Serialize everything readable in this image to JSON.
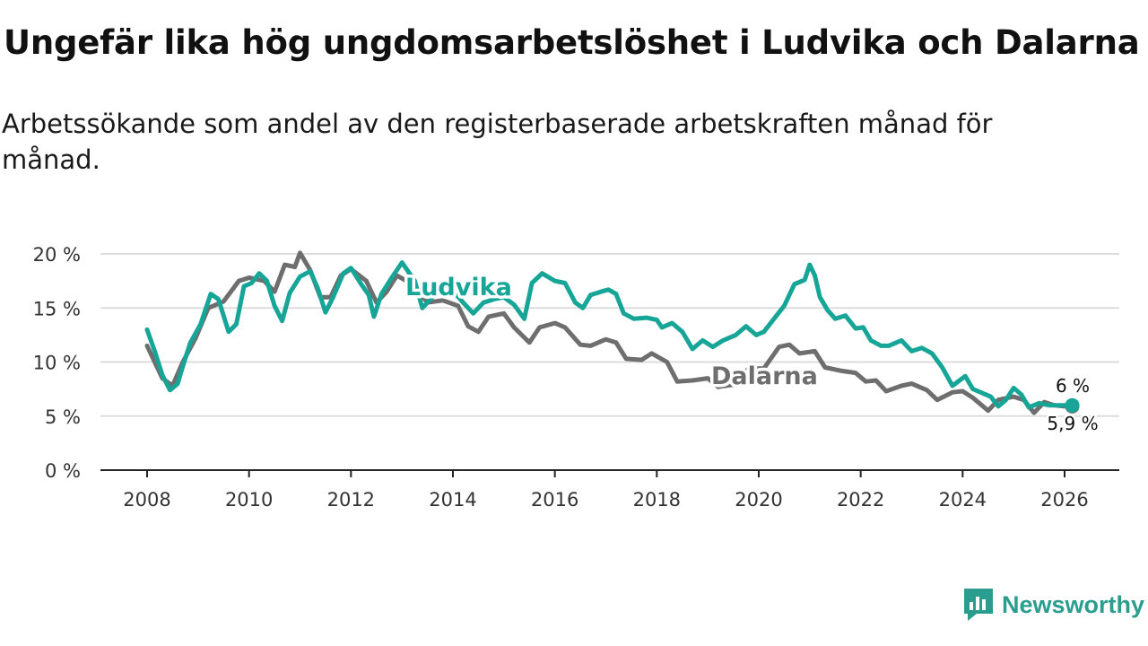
{
  "header": {
    "title": "Ungefär lika hög ungdomsarbetslöshet i Ludvika och Dalarna",
    "subtitle": "Arbetssökande som andel av den registerbaserade arbetskraften månad för månad."
  },
  "brand": {
    "name": "Newsworthy",
    "icon": "bar-chart-logo-icon"
  },
  "colors": {
    "ludvika": "#16a596",
    "dalarna": "#6e6e6e",
    "grid": "#dddddd",
    "axis": "#222222",
    "text": "#333333"
  },
  "chart_data": {
    "type": "line",
    "title": "Ungefär lika hög ungdomsarbetslöshet i Ludvika och Dalarna",
    "xlabel": "",
    "ylabel": "",
    "xlim": [
      2007.6,
      2026.8
    ],
    "ylim": [
      0,
      20
    ],
    "xticks": [
      2008,
      2010,
      2012,
      2014,
      2016,
      2018,
      2020,
      2022,
      2024,
      2026
    ],
    "yticks": [
      0,
      5,
      10,
      15,
      20
    ],
    "ytick_labels": [
      "0 %",
      "5 %",
      "10 %",
      "15 %",
      "20 %"
    ],
    "grid": true,
    "series": [
      {
        "name": "Dalarna",
        "label": "Dalarna",
        "end_label": "5,9 %",
        "end_value": 5.9,
        "points": [
          [
            2008.0,
            11.5
          ],
          [
            2008.3,
            8.5
          ],
          [
            2008.5,
            7.8
          ],
          [
            2008.7,
            10.0
          ],
          [
            2008.95,
            12.2
          ],
          [
            2009.2,
            15.0
          ],
          [
            2009.5,
            15.6
          ],
          [
            2009.8,
            17.5
          ],
          [
            2010.0,
            17.8
          ],
          [
            2010.3,
            17.5
          ],
          [
            2010.5,
            16.5
          ],
          [
            2010.7,
            19.0
          ],
          [
            2010.9,
            18.8
          ],
          [
            2011.0,
            20.1
          ],
          [
            2011.2,
            18.5
          ],
          [
            2011.4,
            16.0
          ],
          [
            2011.6,
            16.0
          ],
          [
            2011.8,
            18.0
          ],
          [
            2012.0,
            18.6
          ],
          [
            2012.3,
            17.5
          ],
          [
            2012.5,
            15.5
          ],
          [
            2012.7,
            16.5
          ],
          [
            2012.9,
            18.0
          ],
          [
            2013.2,
            17.2
          ],
          [
            2013.5,
            15.5
          ],
          [
            2013.8,
            15.7
          ],
          [
            2014.1,
            15.2
          ],
          [
            2014.3,
            13.3
          ],
          [
            2014.5,
            12.8
          ],
          [
            2014.7,
            14.2
          ],
          [
            2015.0,
            14.5
          ],
          [
            2015.2,
            13.2
          ],
          [
            2015.5,
            11.8
          ],
          [
            2015.7,
            13.2
          ],
          [
            2016.0,
            13.6
          ],
          [
            2016.2,
            13.2
          ],
          [
            2016.5,
            11.6
          ],
          [
            2016.7,
            11.5
          ],
          [
            2017.0,
            12.1
          ],
          [
            2017.2,
            11.8
          ],
          [
            2017.4,
            10.3
          ],
          [
            2017.7,
            10.2
          ],
          [
            2017.9,
            10.8
          ],
          [
            2018.2,
            10.0
          ],
          [
            2018.4,
            8.2
          ],
          [
            2018.7,
            8.3
          ],
          [
            2019.0,
            8.5
          ],
          [
            2019.2,
            7.7
          ],
          [
            2019.5,
            7.9
          ],
          [
            2019.8,
            9.4
          ],
          [
            2020.1,
            9.4
          ],
          [
            2020.4,
            11.4
          ],
          [
            2020.6,
            11.6
          ],
          [
            2020.8,
            10.8
          ],
          [
            2021.1,
            11.0
          ],
          [
            2021.3,
            9.5
          ],
          [
            2021.6,
            9.2
          ],
          [
            2021.9,
            9.0
          ],
          [
            2022.1,
            8.2
          ],
          [
            2022.3,
            8.3
          ],
          [
            2022.5,
            7.3
          ],
          [
            2022.8,
            7.8
          ],
          [
            2023.0,
            8.0
          ],
          [
            2023.3,
            7.4
          ],
          [
            2023.5,
            6.5
          ],
          [
            2023.8,
            7.2
          ],
          [
            2024.0,
            7.3
          ],
          [
            2024.2,
            6.7
          ],
          [
            2024.5,
            5.5
          ],
          [
            2024.7,
            6.5
          ],
          [
            2025.0,
            6.8
          ],
          [
            2025.2,
            6.5
          ],
          [
            2025.4,
            5.3
          ],
          [
            2025.6,
            6.3
          ],
          [
            2025.8,
            6.0
          ],
          [
            2026.0,
            5.9
          ],
          [
            2026.15,
            5.9
          ]
        ]
      },
      {
        "name": "Ludvika",
        "label": "Ludvika",
        "end_label": "6 %",
        "end_value": 6.0,
        "points": [
          [
            2008.0,
            13.0
          ],
          [
            2008.15,
            11.0
          ],
          [
            2008.3,
            8.8
          ],
          [
            2008.45,
            7.4
          ],
          [
            2008.6,
            8.0
          ],
          [
            2008.7,
            9.6
          ],
          [
            2008.85,
            11.8
          ],
          [
            2009.05,
            13.5
          ],
          [
            2009.25,
            16.3
          ],
          [
            2009.4,
            15.8
          ],
          [
            2009.6,
            12.8
          ],
          [
            2009.75,
            13.5
          ],
          [
            2009.9,
            17.0
          ],
          [
            2010.05,
            17.3
          ],
          [
            2010.2,
            18.2
          ],
          [
            2010.35,
            17.5
          ],
          [
            2010.5,
            15.2
          ],
          [
            2010.65,
            13.8
          ],
          [
            2010.8,
            16.4
          ],
          [
            2011.0,
            17.9
          ],
          [
            2011.2,
            18.4
          ],
          [
            2011.35,
            16.8
          ],
          [
            2011.5,
            14.6
          ],
          [
            2011.65,
            16.0
          ],
          [
            2011.85,
            18.2
          ],
          [
            2012.0,
            18.7
          ],
          [
            2012.2,
            17.2
          ],
          [
            2012.35,
            16.2
          ],
          [
            2012.45,
            14.2
          ],
          [
            2012.6,
            16.3
          ],
          [
            2012.8,
            17.8
          ],
          [
            2013.0,
            19.2
          ],
          [
            2013.25,
            17.5
          ],
          [
            2013.4,
            15.0
          ],
          [
            2013.6,
            16.0
          ],
          [
            2013.8,
            16.8
          ],
          [
            2014.0,
            16.6
          ],
          [
            2014.2,
            15.5
          ],
          [
            2014.4,
            14.5
          ],
          [
            2014.6,
            15.5
          ],
          [
            2014.8,
            15.8
          ],
          [
            2015.0,
            16.0
          ],
          [
            2015.2,
            15.3
          ],
          [
            2015.4,
            14.0
          ],
          [
            2015.55,
            17.3
          ],
          [
            2015.75,
            18.2
          ],
          [
            2016.0,
            17.5
          ],
          [
            2016.2,
            17.3
          ],
          [
            2016.4,
            15.5
          ],
          [
            2016.55,
            15.0
          ],
          [
            2016.7,
            16.2
          ],
          [
            2016.9,
            16.5
          ],
          [
            2017.05,
            16.7
          ],
          [
            2017.2,
            16.3
          ],
          [
            2017.35,
            14.5
          ],
          [
            2017.55,
            14.0
          ],
          [
            2017.8,
            14.1
          ],
          [
            2018.0,
            13.9
          ],
          [
            2018.1,
            13.2
          ],
          [
            2018.3,
            13.6
          ],
          [
            2018.5,
            12.8
          ],
          [
            2018.7,
            11.2
          ],
          [
            2018.9,
            12.0
          ],
          [
            2019.1,
            11.4
          ],
          [
            2019.3,
            12.0
          ],
          [
            2019.55,
            12.5
          ],
          [
            2019.75,
            13.3
          ],
          [
            2019.95,
            12.5
          ],
          [
            2020.1,
            12.8
          ],
          [
            2020.3,
            14.0
          ],
          [
            2020.5,
            15.2
          ],
          [
            2020.7,
            17.2
          ],
          [
            2020.9,
            17.6
          ],
          [
            2021.0,
            19.0
          ],
          [
            2021.1,
            18.0
          ],
          [
            2021.2,
            16.0
          ],
          [
            2021.35,
            14.8
          ],
          [
            2021.5,
            14.0
          ],
          [
            2021.7,
            14.3
          ],
          [
            2021.9,
            13.1
          ],
          [
            2022.05,
            13.2
          ],
          [
            2022.2,
            12.0
          ],
          [
            2022.4,
            11.5
          ],
          [
            2022.55,
            11.5
          ],
          [
            2022.8,
            12.0
          ],
          [
            2023.0,
            11.0
          ],
          [
            2023.2,
            11.3
          ],
          [
            2023.4,
            10.8
          ],
          [
            2023.6,
            9.5
          ],
          [
            2023.8,
            7.8
          ],
          [
            2024.05,
            8.7
          ],
          [
            2024.2,
            7.5
          ],
          [
            2024.35,
            7.2
          ],
          [
            2024.55,
            6.8
          ],
          [
            2024.7,
            5.9
          ],
          [
            2024.85,
            6.5
          ],
          [
            2025.0,
            7.6
          ],
          [
            2025.15,
            7.0
          ],
          [
            2025.3,
            5.8
          ],
          [
            2025.5,
            6.2
          ],
          [
            2025.7,
            6.0
          ],
          [
            2025.9,
            6.0
          ],
          [
            2026.15,
            6.0
          ]
        ]
      }
    ]
  }
}
